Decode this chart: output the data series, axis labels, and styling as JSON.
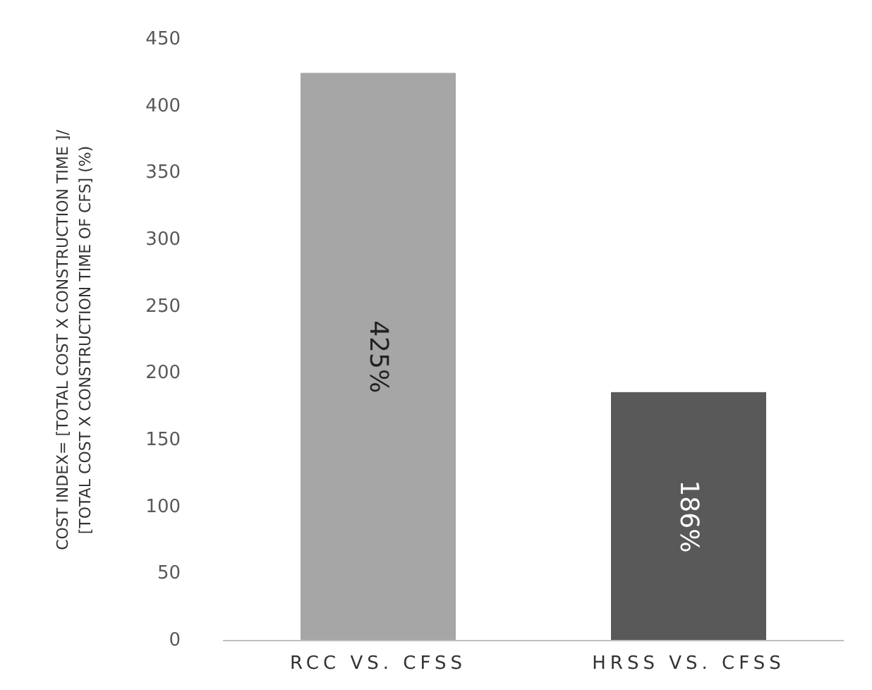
{
  "chart_data": {
    "type": "bar",
    "ylabel": "COST INDEX= [TOTAL COST X CONSTRUCTION  TIME ]/\n[TOTAL COST X CONSTRUCTION  TIME OF CFS] (%)",
    "categories": [
      "RCC VS. CFSS",
      "HRSS VS. CFSS"
    ],
    "values": [
      425,
      186
    ],
    "colors": [
      "#a6a6a6",
      "#595959"
    ],
    "value_labels": [
      "425%",
      "186%"
    ],
    "ylim": [
      0,
      450
    ],
    "yticks": [
      0,
      50,
      100,
      150,
      200,
      250,
      300,
      350,
      400,
      450
    ],
    "grid": false
  }
}
